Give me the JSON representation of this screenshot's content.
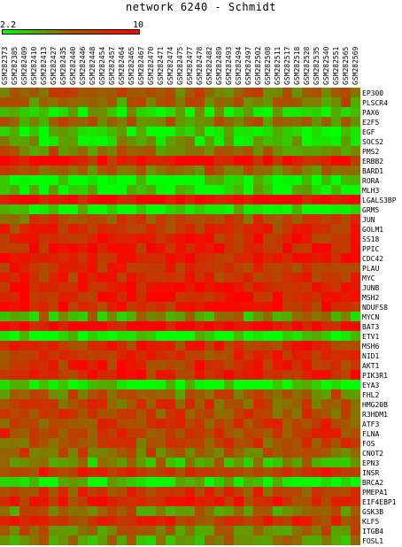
{
  "title": "network 6240 - Schmidt",
  "scale": {
    "min_label": "2.2",
    "max_label": "10",
    "low_color": "#00ff00",
    "high_color": "#ff0000",
    "mid_color": "#a05a00"
  },
  "chart_data": {
    "type": "heatmap",
    "title": "network 6240 - Schmidt",
    "columns": [
      "GSM282373",
      "GSM282385",
      "GSM282409",
      "GSM282410",
      "GSM282413",
      "GSM282427",
      "GSM282435",
      "GSM282440",
      "GSM282446",
      "GSM282448",
      "GSM282454",
      "GSM282457",
      "GSM282464",
      "GSM282465",
      "GSM282467",
      "GSM282470",
      "GSM282471",
      "GSM282474",
      "GSM282475",
      "GSM282477",
      "GSM282478",
      "GSM282482",
      "GSM282489",
      "GSM282493",
      "GSM282494",
      "GSM282497",
      "GSM282502",
      "GSM282508",
      "GSM282511",
      "GSM282517",
      "GSM282518",
      "GSM282528",
      "GSM282535",
      "GSM282540",
      "GSM282551",
      "GSM282565",
      "GSM282569"
    ],
    "rows": [
      "EP300",
      "PLSCR4",
      "PAX6",
      "E2F5",
      "EGF",
      "SOCS2",
      "PMS2",
      "ERBB2",
      "BARD1",
      "RORA",
      "MLH3",
      "LGALS3BP",
      "GRM5",
      "JUN",
      "GOLM1",
      "SS18",
      "PPIC",
      "CDC42",
      "PLAU",
      "MYC",
      "JUNB",
      "MSH2",
      "NDUFS8",
      "MYCN",
      "BAT3",
      "ETV1",
      "MSH6",
      "NID1",
      "AKT1",
      "PIK3R1",
      "EYA3",
      "FHL2",
      "HMG20B",
      "R3HDM1",
      "ATF3",
      "FLNA",
      "FOS",
      "CNOT2",
      "EPN3",
      "INSR",
      "BRCA2",
      "PMEPA1",
      "EIF4EBP1",
      "GSK3B",
      "KLF5",
      "ITGB4",
      "FOSL1"
    ],
    "row_levels": [
      0.55,
      0.45,
      0.15,
      0.45,
      0.1,
      0.2,
      0.45,
      0.85,
      0.5,
      0.05,
      0.1,
      0.95,
      0.05,
      0.6,
      0.75,
      0.8,
      0.85,
      0.85,
      0.75,
      0.75,
      0.85,
      0.85,
      0.8,
      0.3,
      0.95,
      0.05,
      0.75,
      0.7,
      0.75,
      0.8,
      0.05,
      0.5,
      0.6,
      0.6,
      0.65,
      0.65,
      0.6,
      0.55,
      0.3,
      0.7,
      0.1,
      0.65,
      0.75,
      0.45,
      0.7,
      0.45,
      0.35
    ],
    "value_range": [
      2.2,
      10
    ],
    "legend": "top-left color bar"
  }
}
